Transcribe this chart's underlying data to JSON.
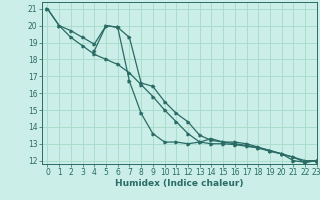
{
  "title": "",
  "xlabel": "Humidex (Indice chaleur)",
  "bg_color": "#cceee8",
  "grid_color": "#aaddcc",
  "line_color": "#2a6b65",
  "spine_color": "#2a6b65",
  "xlim": [
    -0.5,
    23
  ],
  "ylim": [
    11.8,
    21.4
  ],
  "yticks": [
    12,
    13,
    14,
    15,
    16,
    17,
    18,
    19,
    20,
    21
  ],
  "xticks": [
    0,
    1,
    2,
    3,
    4,
    5,
    6,
    7,
    8,
    9,
    10,
    11,
    12,
    13,
    14,
    15,
    16,
    17,
    18,
    19,
    20,
    21,
    22,
    23
  ],
  "line1_x": [
    0,
    1,
    2,
    3,
    4,
    5,
    6,
    7,
    8,
    9,
    10,
    11,
    12,
    13,
    14,
    15,
    16,
    17,
    18,
    19,
    20,
    21,
    22,
    23
  ],
  "line1_y": [
    21.0,
    20.0,
    19.7,
    19.3,
    18.9,
    20.0,
    19.9,
    16.7,
    14.8,
    13.6,
    13.1,
    13.1,
    13.0,
    13.1,
    13.3,
    13.1,
    13.0,
    12.9,
    12.75,
    12.55,
    12.4,
    12.0,
    11.9,
    12.0
  ],
  "line2_x": [
    0,
    1,
    2,
    3,
    4,
    5,
    6,
    7,
    8,
    9,
    10,
    11,
    12,
    13,
    14,
    15,
    16,
    17,
    18,
    19,
    20,
    21,
    22,
    23
  ],
  "line2_y": [
    21.0,
    20.0,
    19.3,
    18.8,
    18.3,
    18.0,
    17.7,
    17.2,
    16.5,
    15.8,
    15.0,
    14.3,
    13.6,
    13.1,
    13.0,
    13.0,
    12.95,
    12.85,
    12.75,
    12.6,
    12.4,
    12.2,
    12.0,
    12.0
  ],
  "line3_x": [
    4,
    5,
    6,
    7,
    8,
    9,
    10,
    11,
    12,
    13,
    14,
    15,
    16,
    17,
    18,
    19,
    20,
    21,
    22,
    23
  ],
  "line3_y": [
    18.5,
    20.0,
    19.9,
    19.3,
    16.6,
    16.4,
    15.5,
    14.8,
    14.3,
    13.5,
    13.2,
    13.1,
    13.1,
    13.0,
    12.8,
    12.6,
    12.4,
    12.2,
    11.9,
    12.0
  ],
  "tick_fontsize": 5.5,
  "xlabel_fontsize": 6.5,
  "marker_size": 2.0,
  "linewidth": 0.9
}
